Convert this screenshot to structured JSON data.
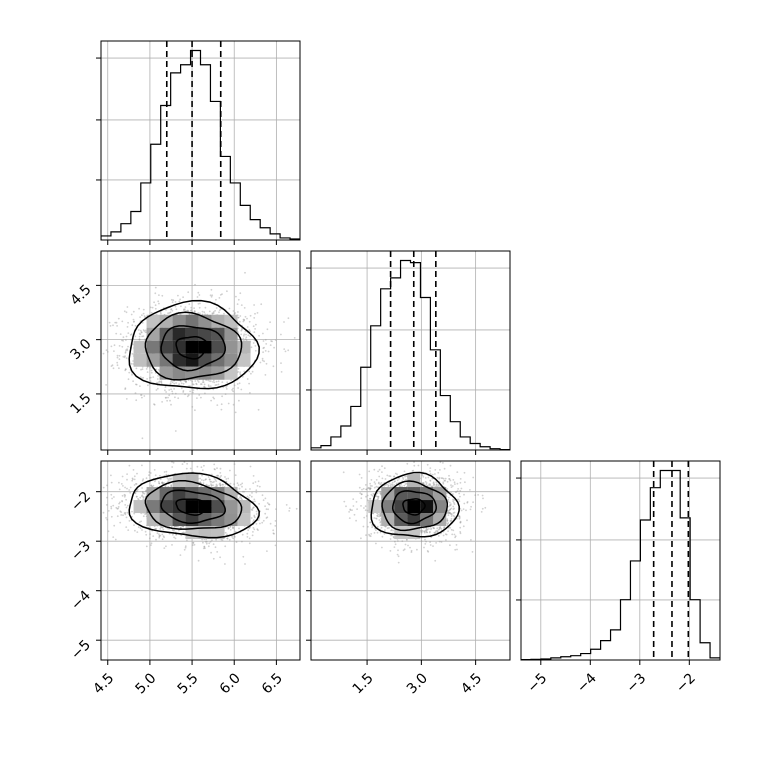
{
  "chart_data": {
    "type": "corner",
    "grid": true,
    "colors": {
      "line": "#000000",
      "scatter": "#808080",
      "grid": "#b0b0b0"
    },
    "params": [
      {
        "range": [
          4.42,
          6.78
        ],
        "ticks": [
          4.5,
          5.0,
          5.5,
          6.0,
          6.5
        ],
        "tick_labels": [
          "4.5",
          "5.0",
          "5.5",
          "6.0",
          "6.5"
        ],
        "center": 5.5,
        "sd": 0.38,
        "quantiles": [
          5.2,
          5.5,
          5.84
        ]
      },
      {
        "range": [
          -0.05,
          5.45
        ],
        "ticks": [
          1.5,
          3.0,
          4.5
        ],
        "tick_labels": [
          "1.5",
          "3.0",
          "4.5"
        ],
        "center": 2.79,
        "sd": 0.6,
        "quantiles": [
          2.15,
          2.79,
          3.4
        ]
      },
      {
        "range": [
          -5.4,
          -1.38
        ],
        "ticks": [
          -5,
          -4,
          -3,
          -2
        ],
        "tick_labels": [
          "−5",
          "−4",
          "−3",
          "−2"
        ],
        "center": -2.3,
        "sd": 0.32,
        "quantiles": [
          -2.72,
          -2.35,
          -2.02
        ]
      }
    ],
    "histograms": [
      {
        "param": 0,
        "bins": 20,
        "counts": [
          2,
          4,
          8,
          14,
          28,
          47,
          66,
          82,
          86,
          93,
          86,
          68,
          41,
          28,
          17,
          10,
          6,
          3,
          1,
          0.5
        ]
      },
      {
        "param": 1,
        "bins": 20,
        "counts": [
          1,
          2,
          6,
          11,
          20,
          38,
          57,
          74,
          79,
          87,
          86,
          70,
          46,
          25,
          13,
          6,
          3,
          1.5,
          0.6,
          0.2
        ]
      },
      {
        "param": 2,
        "bins": 20,
        "counts": [
          0.2,
          0.3,
          0.5,
          1,
          1.5,
          2,
          3,
          5,
          9,
          14,
          28,
          46,
          65,
          80,
          88,
          88,
          66,
          28,
          8,
          1
        ]
      }
    ],
    "pair_panels": [
      {
        "x_param": 0,
        "y_param": 1,
        "correlation": 0.0
      },
      {
        "x_param": 0,
        "y_param": 2,
        "correlation": -0.15
      },
      {
        "x_param": 1,
        "y_param": 2,
        "correlation": 0.0
      }
    ]
  }
}
